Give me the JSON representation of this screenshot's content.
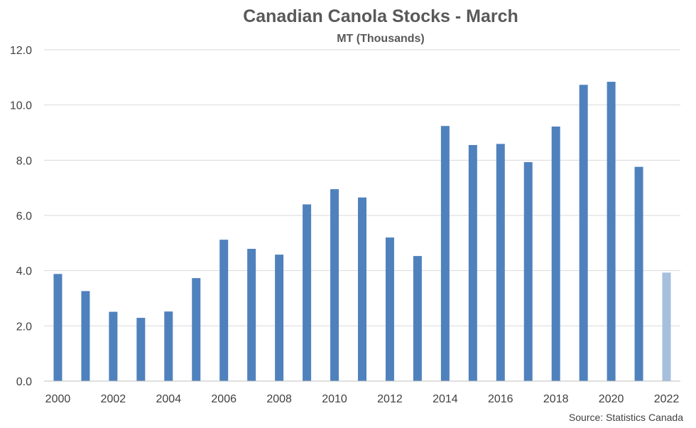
{
  "chart_data": {
    "type": "bar",
    "title": "Canadian Canola Stocks - March",
    "subtitle": "MT (Thousands)",
    "source": "Source: Statistics Canada",
    "xlabel": "",
    "ylabel": "",
    "ylim": [
      0,
      12
    ],
    "yticks": [
      0,
      2,
      4,
      6,
      8,
      10,
      12
    ],
    "ytick_labels": [
      "0.0",
      "2.0",
      "4.0",
      "6.0",
      "8.0",
      "10.0",
      "12.0"
    ],
    "categories": [
      "2000",
      "2001",
      "2002",
      "2003",
      "2004",
      "2005",
      "2006",
      "2007",
      "2008",
      "2009",
      "2010",
      "2011",
      "2012",
      "2013",
      "2014",
      "2015",
      "2016",
      "2017",
      "2018",
      "2019",
      "2020",
      "2021",
      "2022"
    ],
    "xtick_labels": [
      "2000",
      "",
      "2002",
      "",
      "2004",
      "",
      "2006",
      "",
      "2008",
      "",
      "2010",
      "",
      "2012",
      "",
      "2014",
      "",
      "2016",
      "",
      "2018",
      "",
      "2020",
      "",
      "2022"
    ],
    "values": [
      3.88,
      3.26,
      2.51,
      2.29,
      2.52,
      3.73,
      5.12,
      4.79,
      4.58,
      6.4,
      6.95,
      6.65,
      5.2,
      4.53,
      9.24,
      8.55,
      8.59,
      7.93,
      9.22,
      10.73,
      10.84,
      7.76,
      3.93
    ],
    "grid": true,
    "legend": "none",
    "colors": {
      "bar": "#4f81bd",
      "highlight": "#a6bfdc"
    },
    "highlight_categories": [
      "2022"
    ]
  }
}
